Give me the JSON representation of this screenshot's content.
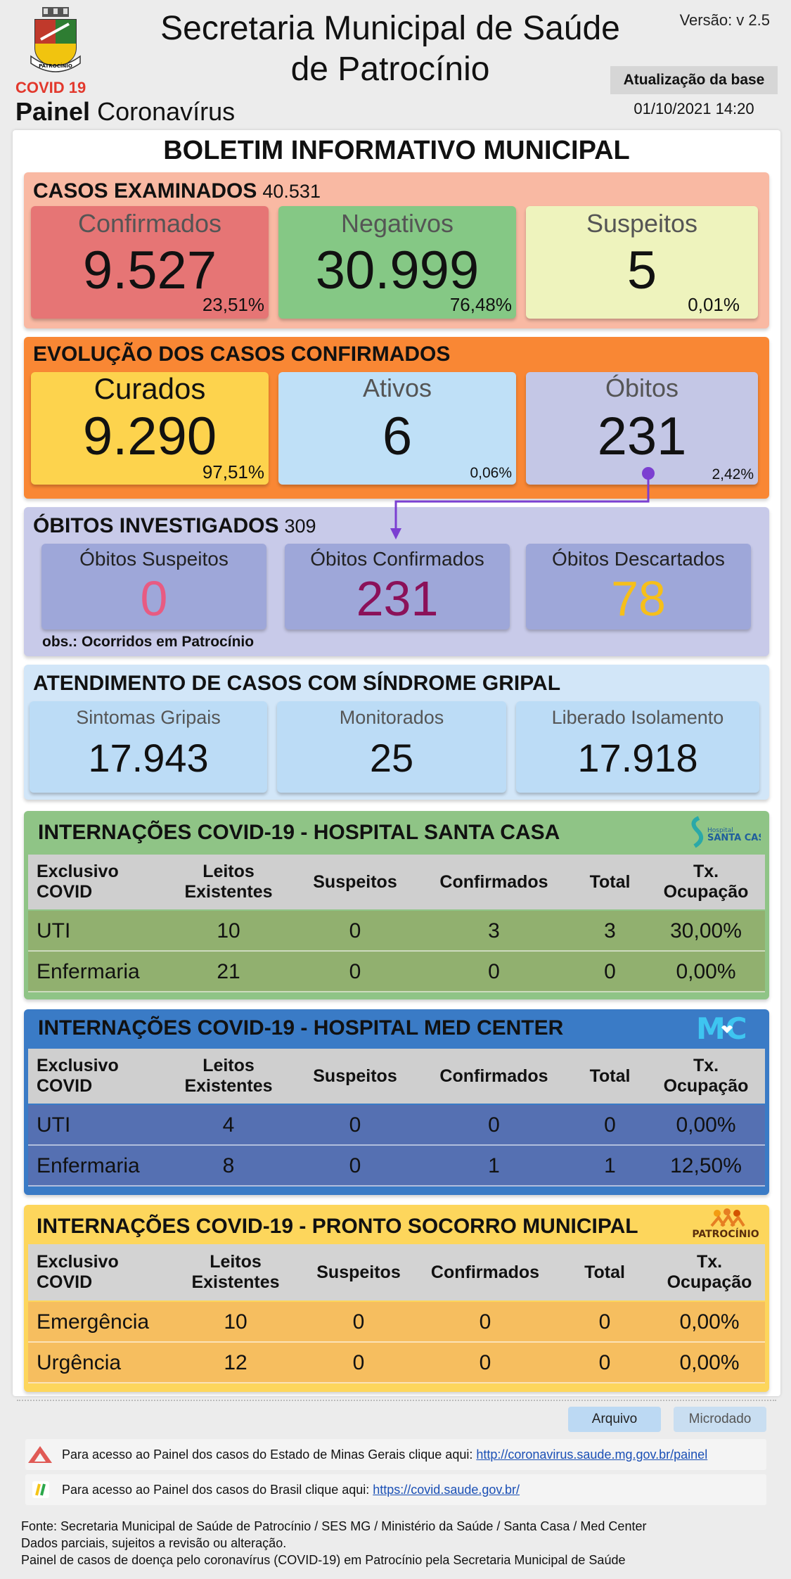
{
  "header": {
    "title_line1": "Secretaria Municipal de Saúde",
    "title_line2": "de Patrocínio",
    "version": "Versão: v 2.5",
    "covid_label": "COVID 19",
    "painel_bold": "Painel",
    "painel_rest": " Coronavírus",
    "update_label": "Atualização da base",
    "update_date": "01/10/2021 14:20",
    "crest_text": "PATROCÍNIO"
  },
  "bulletin_title": "BOLETIM INFORMATIVO MUNICIPAL",
  "casos_examinados": {
    "title": "CASOS EXAMINADOS",
    "total": "40.531",
    "cards": [
      {
        "label": "Confirmados",
        "value": "9.527",
        "pct": "23,51%"
      },
      {
        "label": "Negativos",
        "value": "30.999",
        "pct": "76,48%"
      },
      {
        "label": "Suspeitos",
        "value": "5",
        "pct": "0,01%"
      }
    ]
  },
  "evolucao": {
    "title": "EVOLUÇÃO DOS CASOS CONFIRMADOS",
    "cards": [
      {
        "label": "Curados",
        "value": "9.290",
        "pct": "97,51%"
      },
      {
        "label": "Ativos",
        "value": "6",
        "pct": "0,06%"
      },
      {
        "label": "Óbitos",
        "value": "231",
        "pct": "2,42%"
      }
    ]
  },
  "obitos_investigados": {
    "title": "ÓBITOS INVESTIGADOS",
    "total": "309",
    "cards": [
      {
        "label": "Óbitos Suspeitos",
        "value": "0"
      },
      {
        "label": "Óbitos Confirmados",
        "value": "231"
      },
      {
        "label": "Óbitos Descartados",
        "value": "78"
      }
    ],
    "obs": "obs.: Ocorridos em Patrocínio"
  },
  "sindrome_gripal": {
    "title": "ATENDIMENTO DE CASOS COM SÍNDROME GRIPAL",
    "cards": [
      {
        "label": "Sintomas Gripais",
        "value": "17.943"
      },
      {
        "label": "Monitorados",
        "value": "25"
      },
      {
        "label": "Liberado Isolamento",
        "value": "17.918"
      }
    ]
  },
  "table_headers": {
    "col1": [
      "Exclusivo",
      "COVID"
    ],
    "col2": [
      "Leitos",
      "Existentes"
    ],
    "col3": "Suspeitos",
    "col4": "Confirmados",
    "col5": "Total",
    "col6": [
      "Tx.",
      "Ocupação"
    ]
  },
  "santa_casa": {
    "title": "INTERNAÇÕES COVID-19 - HOSPITAL SANTA CASA",
    "logo_line1": "Hospital",
    "logo_line2": "SANTA CASA",
    "rows": [
      {
        "name": "UTI",
        "leitos": "10",
        "suspeitos": "0",
        "confirmados": "3",
        "total": "3",
        "tx": "30,00%"
      },
      {
        "name": "Enfermaria",
        "leitos": "21",
        "suspeitos": "0",
        "confirmados": "0",
        "total": "0",
        "tx": "0,00%"
      }
    ]
  },
  "med_center": {
    "title": "INTERNAÇÕES COVID-19 - HOSPITAL MED CENTER",
    "logo_text": "MC",
    "rows": [
      {
        "name": "UTI",
        "leitos": "4",
        "suspeitos": "0",
        "confirmados": "0",
        "total": "0",
        "tx": "0,00%"
      },
      {
        "name": "Enfermaria",
        "leitos": "8",
        "suspeitos": "0",
        "confirmados": "1",
        "total": "1",
        "tx": "12,50%"
      }
    ]
  },
  "pronto_socorro": {
    "title": "INTERNAÇÕES COVID-19 - PRONTO SOCORRO MUNICIPAL",
    "logo_text": "PATROCÍNIO",
    "rows": [
      {
        "name": "Emergência",
        "leitos": "10",
        "suspeitos": "0",
        "confirmados": "0",
        "total": "0",
        "tx": "0,00%"
      },
      {
        "name": "Urgência",
        "leitos": "12",
        "suspeitos": "0",
        "confirmados": "0",
        "total": "0",
        "tx": "0,00%"
      }
    ]
  },
  "buttons": {
    "arquivo": "Arquivo",
    "microdado": "Microdado"
  },
  "links": {
    "mg_text": "Para acesso ao Painel dos casos do Estado de Minas Gerais clique aqui: ",
    "mg_url": "http://coronavirus.saude.mg.gov.br/painel",
    "br_text": "Para acesso ao Painel dos casos do Brasil clique aqui: ",
    "br_url": "https://covid.saude.gov.br/"
  },
  "footer": {
    "line1": "Fonte: Secretaria Municipal de Saúde de Patrocínio / SES MG / Ministério da Saúde / Santa Casa / Med Center",
    "line2": "Dados parciais, sujeitos a revisão ou alteração.",
    "line3": "Painel de casos de doença pelo coronavírus (COVID-19) em Patrocínio pela Secretaria Municipal de Saúde"
  },
  "colors": {
    "examinados_bg": "#f9b9a3",
    "confirmados": "#e67575",
    "negativos": "#85c885",
    "suspeitos": "#eef3bd",
    "evolucao_bg": "#f98734",
    "curados": "#fdd34d",
    "ativos": "#bfe0f7",
    "obitos": "#c4c7e6",
    "investigados_bg": "#c8cae9",
    "inv_card": "#9ea7d9",
    "sg_bg": "#d2e6f8",
    "sg_card": "#bcdcf6",
    "santa_casa_bg": "#8fc486",
    "santa_row": "#91b06f",
    "med_bg": "#3a7bc6",
    "med_row": "#5570b2",
    "ps_bg": "#fdd65c",
    "ps_row": "#f6be5f",
    "val_pink": "#e85b82",
    "val_purple": "#8b1159",
    "val_yellow": "#f6bf1a"
  }
}
